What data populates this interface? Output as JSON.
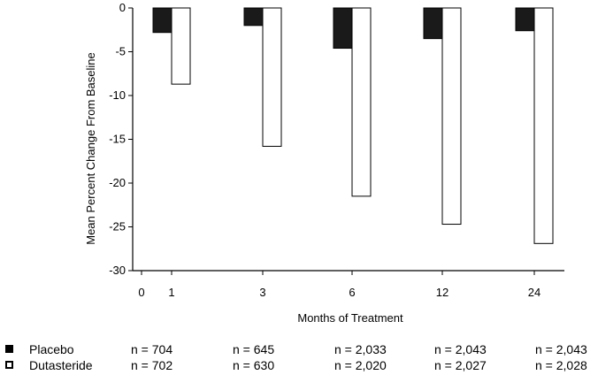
{
  "chart_data": {
    "type": "bar",
    "categories": [
      "1",
      "3",
      "6",
      "12",
      "24"
    ],
    "x_axis_extra_tick": "0",
    "series": [
      {
        "name": "Placebo",
        "values": [
          -2.8,
          -2.0,
          -4.6,
          -3.5,
          -2.6
        ],
        "style": "filled",
        "color": "#1a1a1a"
      },
      {
        "name": "Dutasteride",
        "values": [
          -8.7,
          -15.8,
          -21.5,
          -24.7,
          -26.9
        ],
        "style": "open",
        "color": "#ffffff"
      }
    ],
    "title": "",
    "xlabel": "Months of Treatment",
    "ylabel": "Mean Percent Change From Baseline",
    "yticks": [
      "0",
      "-5",
      "-10",
      "-15",
      "-20",
      "-25",
      "-30"
    ],
    "ylim": [
      -30,
      0
    ],
    "grid": false
  },
  "legend": {
    "rows": [
      {
        "label": "Placebo",
        "style": "filled",
        "n": [
          "n = 704",
          "n = 645",
          "n = 2,033",
          "n = 2,043",
          "n = 2,043"
        ]
      },
      {
        "label": "Dutasteride",
        "style": "open",
        "n": [
          "n = 702",
          "n = 630",
          "n = 2,020",
          "n = 2,027",
          "n = 2,028"
        ]
      }
    ]
  }
}
